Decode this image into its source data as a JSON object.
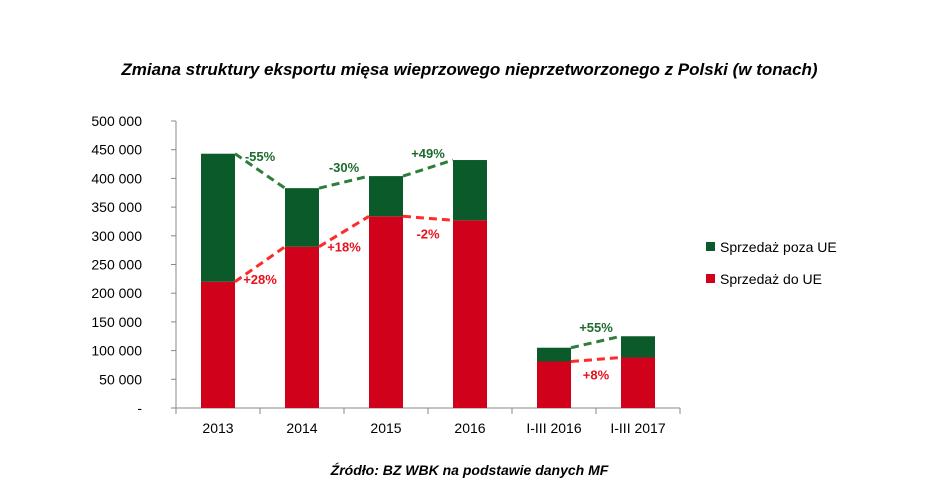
{
  "chart_data": {
    "type": "bar",
    "stacked": true,
    "title": "Zmiana struktury eksportu mięsa wieprzowego nieprzetworzonego z Polski (w tonach)",
    "source": "Źródło: BZ WBK na podstawie danych MF",
    "categories": [
      "2013",
      "2014",
      "2015",
      "2016",
      "I-III 2016",
      "I-III 2017"
    ],
    "ylim": [
      0,
      500000
    ],
    "yticks": [
      0,
      50000,
      100000,
      150000,
      200000,
      250000,
      300000,
      350000,
      400000,
      450000,
      500000
    ],
    "ytick_labels": [
      "-",
      "50 000",
      "100 000",
      "150 000",
      "200 000",
      "250 000",
      "300 000",
      "350 000",
      "400 000",
      "450 000",
      "500 000"
    ],
    "legend_position": "right",
    "series": [
      {
        "name": "Sprzedaż do UE",
        "color": "#d0021b",
        "values": [
          220000,
          281000,
          334000,
          327000,
          81000,
          88000
        ]
      },
      {
        "name": "Sprzedaż poza UE",
        "color": "#0b5a2a",
        "values": [
          223000,
          102000,
          70000,
          105000,
          24000,
          37000
        ]
      }
    ],
    "legend_order": [
      "Sprzedaż poza UE",
      "Sprzedaż do UE"
    ],
    "trend_annotations": [
      {
        "series": "Sprzedaż poza UE",
        "from": 0,
        "to": 1,
        "label": "-55%"
      },
      {
        "series": "Sprzedaż poza UE",
        "from": 1,
        "to": 2,
        "label": "-30%"
      },
      {
        "series": "Sprzedaż poza UE",
        "from": 2,
        "to": 3,
        "label": "+49%"
      },
      {
        "series": "Sprzedaż poza UE",
        "from": 4,
        "to": 5,
        "label": "+55%"
      },
      {
        "series": "Sprzedaż do UE",
        "from": 0,
        "to": 1,
        "label": "+28%"
      },
      {
        "series": "Sprzedaż do UE",
        "from": 1,
        "to": 2,
        "label": "+18%"
      },
      {
        "series": "Sprzedaż do UE",
        "from": 2,
        "to": 3,
        "label": "-2%"
      },
      {
        "series": "Sprzedaż do UE",
        "from": 4,
        "to": 5,
        "label": "+8%"
      }
    ]
  }
}
